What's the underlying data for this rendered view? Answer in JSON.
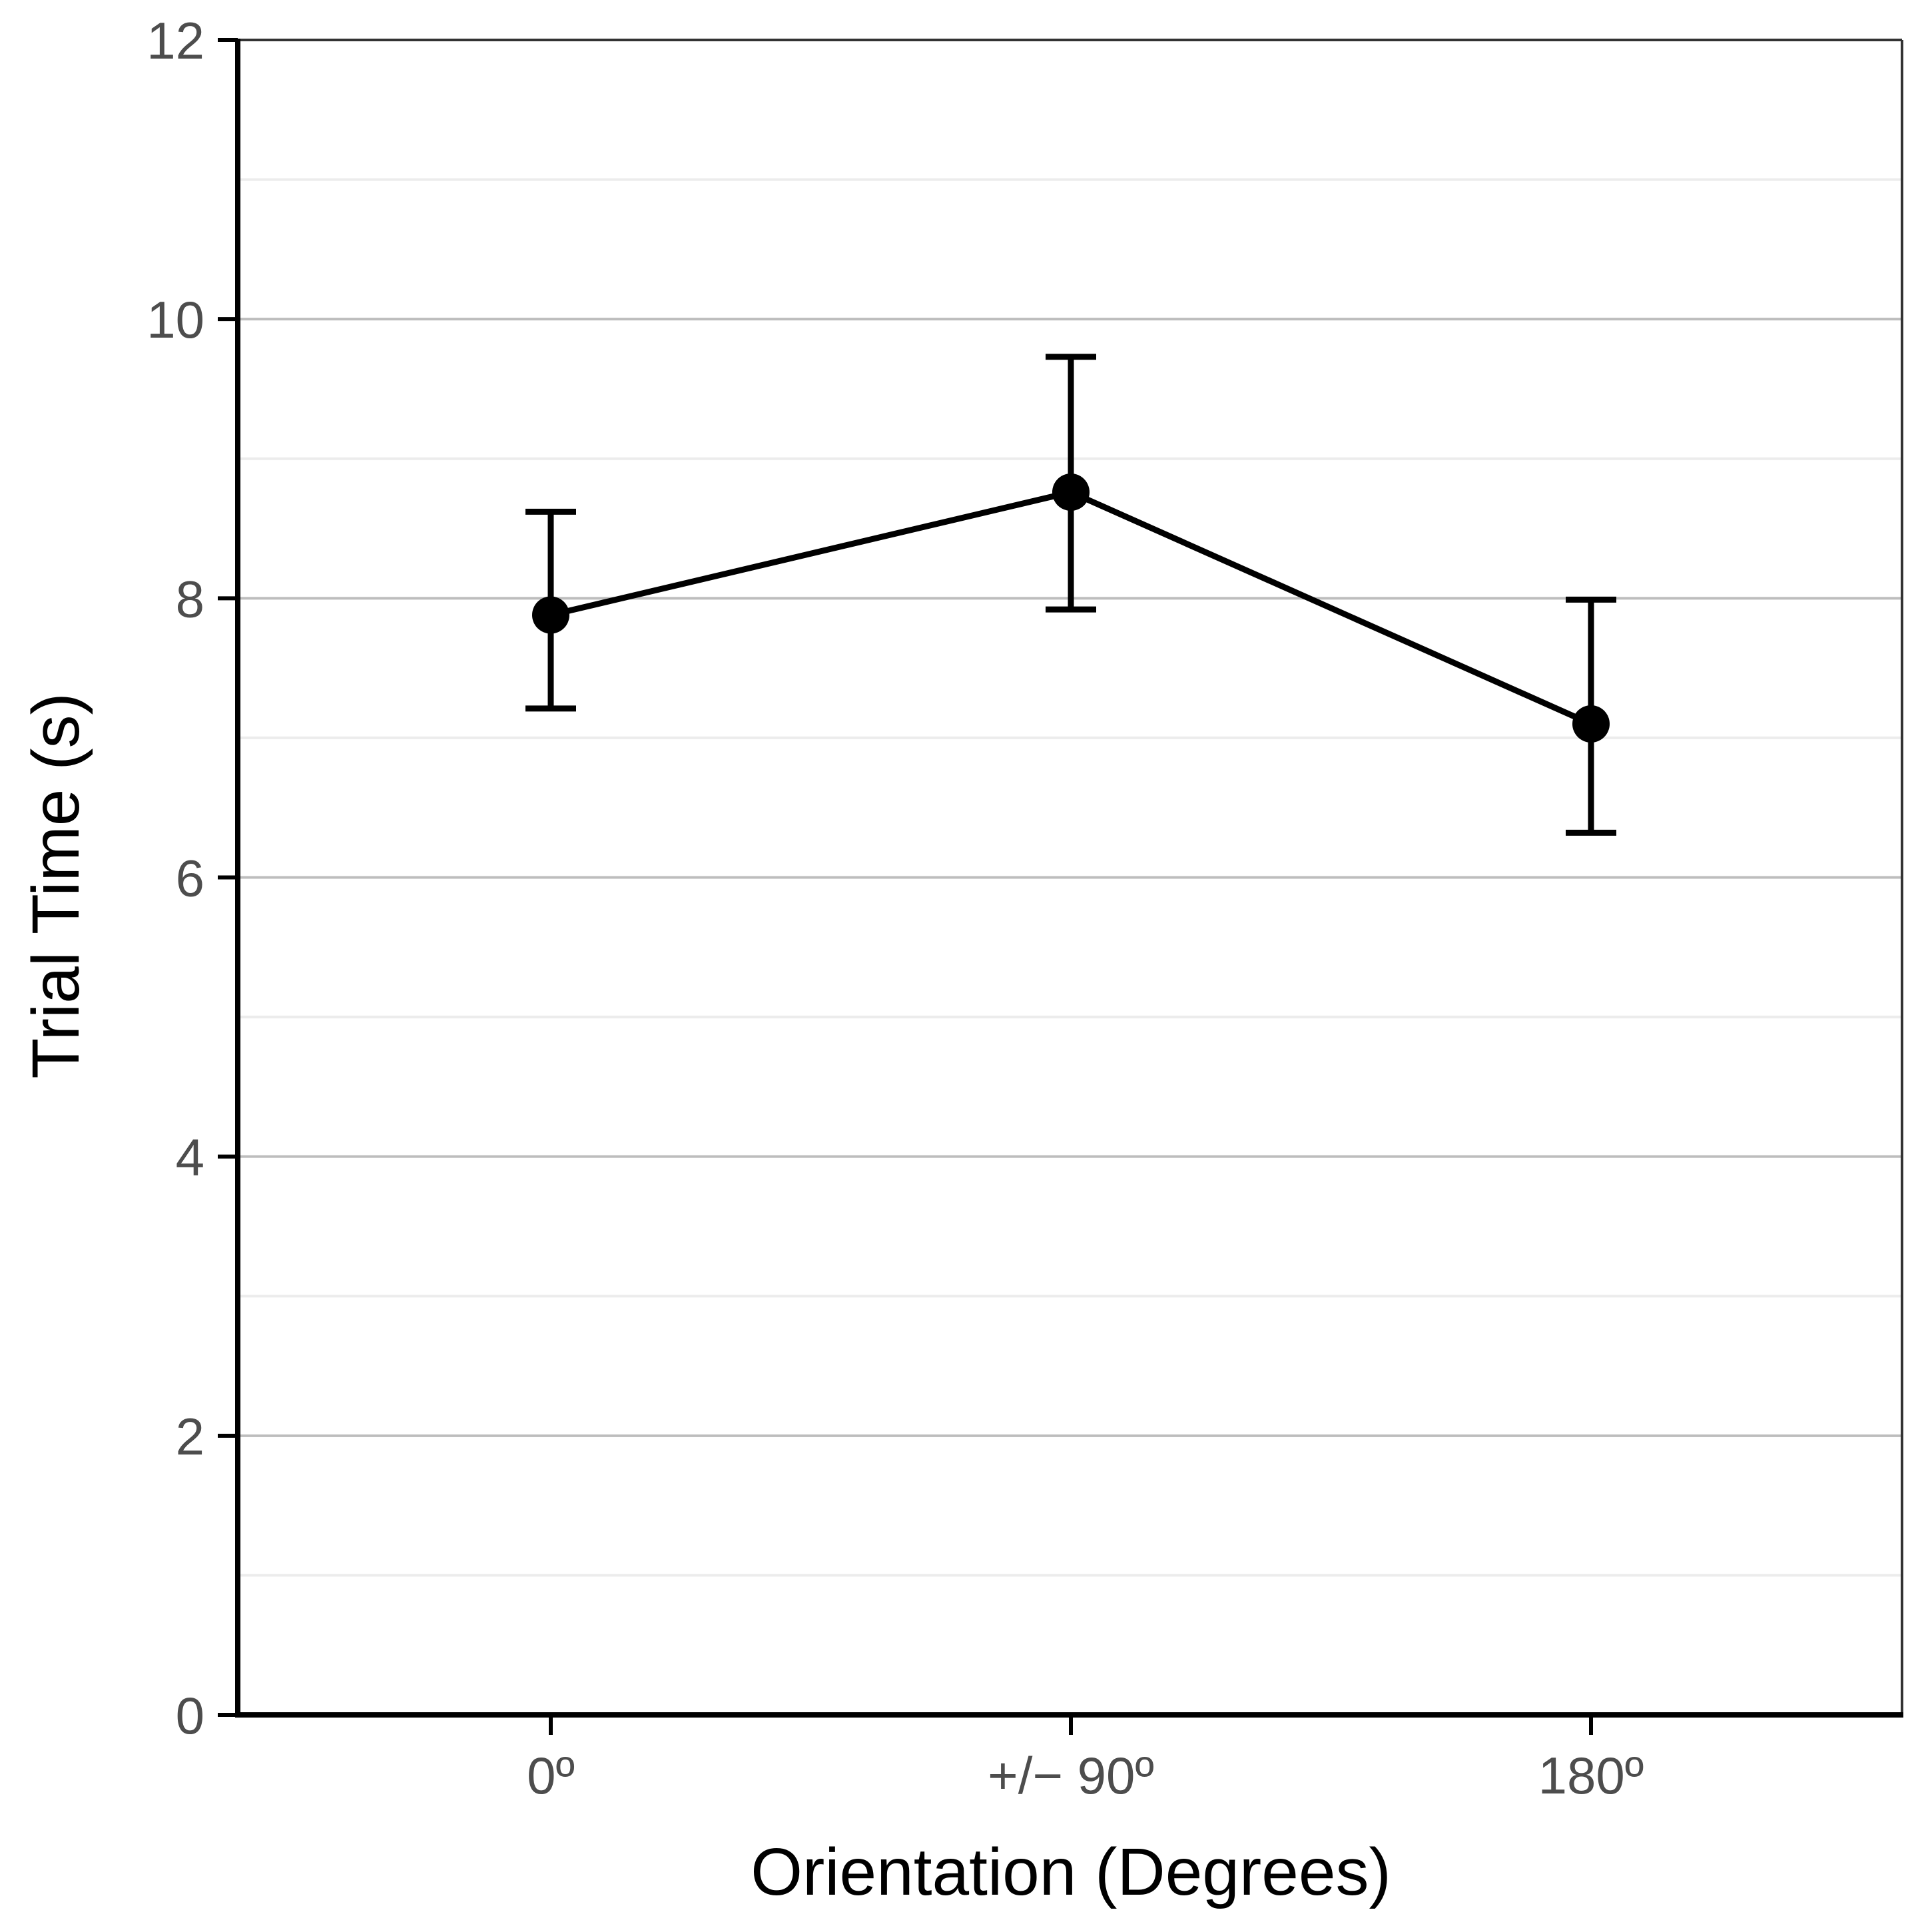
{
  "chart_data": {
    "type": "line",
    "title": "",
    "xlabel": "Orientation (Degrees)",
    "ylabel": "Trial Time (s)",
    "categories": [
      "0º",
      "+/− 90º",
      "180º"
    ],
    "series": [
      {
        "name": "Trial Time",
        "values": [
          7.88,
          8.76,
          7.1
        ],
        "error_low": [
          7.21,
          7.92,
          6.32
        ],
        "error_high": [
          8.62,
          9.73,
          7.99
        ]
      }
    ],
    "ylim": [
      0,
      12
    ],
    "yticks": [
      "0",
      "2",
      "4",
      "6",
      "8",
      "10",
      "12"
    ],
    "ytick_values": [
      0,
      2,
      4,
      6,
      8,
      10,
      12
    ],
    "yminor_values": [
      1,
      3,
      5,
      7,
      9,
      11
    ],
    "grid": true,
    "legend": "none",
    "colors": {
      "line": "#000000",
      "grid_major": "#bdbdbd",
      "grid_minor": "#ececec",
      "axis": "#000000",
      "frame": "#333333"
    }
  }
}
